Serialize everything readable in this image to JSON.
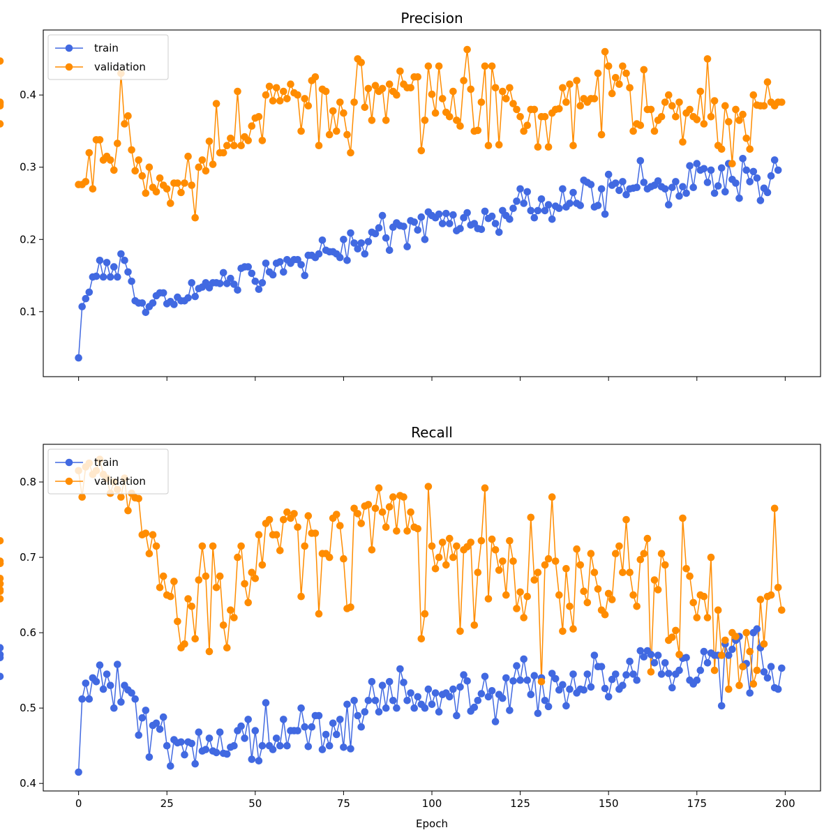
{
  "chart_data": [
    {
      "type": "line",
      "title": "Precision",
      "xlabel": "",
      "ylabel": "",
      "xlim": [
        -10,
        210
      ],
      "ylim": [
        0.01,
        0.49
      ],
      "xticks": [
        0,
        25,
        50,
        75,
        100,
        125,
        150,
        175,
        200
      ],
      "yticks": [
        0.1,
        0.2,
        0.3,
        0.4
      ],
      "ytick_labels": [
        "0.1",
        "0.2",
        "0.3",
        "0.4"
      ],
      "show_xtick_labels": false,
      "grid": false,
      "legend_position": "upper-left",
      "x": {
        "start": 0,
        "end": 199,
        "step": 1
      },
      "series": [
        {
          "name": "train",
          "color": "#4169e1",
          "marker": "circle",
          "values": [
            0.036,
            0.107,
            0.118,
            0.127,
            0.148,
            0.149,
            0.171,
            0.148,
            0.168,
            0.148,
            0.162,
            0.148,
            0.18,
            0.171,
            0.155,
            0.142,
            0.115,
            0.112,
            0.112,
            0.099,
            0.107,
            0.112,
            0.122,
            0.126,
            0.126,
            0.111,
            0.114,
            0.11,
            0.12,
            0.115,
            0.115,
            0.119,
            0.14,
            0.121,
            0.132,
            0.134,
            0.14,
            0.133,
            0.14,
            0.14,
            0.139,
            0.154,
            0.139,
            0.146,
            0.138,
            0.13,
            0.16,
            0.162,
            0.162,
            0.153,
            0.142,
            0.131,
            0.14,
            0.167,
            0.155,
            0.151,
            0.167,
            0.169,
            0.155,
            0.172,
            0.167,
            0.172,
            0.172,
            0.165,
            0.15,
            0.178,
            0.178,
            0.175,
            0.18,
            0.199,
            0.185,
            0.183,
            0.183,
            0.18,
            0.175,
            0.2,
            0.171,
            0.209,
            0.195,
            0.187,
            0.195,
            0.18,
            0.197,
            0.21,
            0.208,
            0.216,
            0.233,
            0.202,
            0.185,
            0.217,
            0.223,
            0.219,
            0.218,
            0.19,
            0.226,
            0.224,
            0.213,
            0.231,
            0.2,
            0.238,
            0.233,
            0.23,
            0.235,
            0.222,
            0.236,
            0.222,
            0.234,
            0.212,
            0.215,
            0.23,
            0.237,
            0.22,
            0.222,
            0.215,
            0.214,
            0.239,
            0.229,
            0.232,
            0.222,
            0.21,
            0.24,
            0.233,
            0.228,
            0.243,
            0.253,
            0.27,
            0.25,
            0.266,
            0.24,
            0.23,
            0.24,
            0.256,
            0.24,
            0.248,
            0.228,
            0.246,
            0.243,
            0.27,
            0.245,
            0.25,
            0.265,
            0.25,
            0.247,
            0.282,
            0.279,
            0.276,
            0.245,
            0.247,
            0.27,
            0.235,
            0.29,
            0.275,
            0.278,
            0.268,
            0.28,
            0.262,
            0.27,
            0.271,
            0.272,
            0.309,
            0.279,
            0.27,
            0.273,
            0.275,
            0.281,
            0.273,
            0.27,
            0.248,
            0.272,
            0.28,
            0.26,
            0.273,
            0.264,
            0.302,
            0.272,
            0.305,
            0.296,
            0.298,
            0.279,
            0.296,
            0.264,
            0.274,
            0.299,
            0.266,
            0.305,
            0.283,
            0.278,
            0.257,
            0.312,
            0.296,
            0.28,
            0.294,
            0.285,
            0.254,
            0.271,
            0.265,
            0.288,
            0.31,
            0.296
          ]
        },
        {
          "name": "validation",
          "color": "#ff8c00",
          "marker": "circle",
          "values": [
            0.276,
            0.276,
            0.28,
            0.32,
            0.27,
            0.338,
            0.338,
            0.31,
            0.315,
            0.31,
            0.296,
            0.333,
            0.43,
            0.36,
            0.371,
            0.324,
            0.295,
            0.31,
            0.288,
            0.264,
            0.3,
            0.272,
            0.266,
            0.285,
            0.275,
            0.27,
            0.25,
            0.278,
            0.278,
            0.265,
            0.278,
            0.315,
            0.275,
            0.23,
            0.3,
            0.31,
            0.295,
            0.336,
            0.304,
            0.388,
            0.32,
            0.32,
            0.33,
            0.34,
            0.33,
            0.405,
            0.33,
            0.342,
            0.337,
            0.357,
            0.368,
            0.37,
            0.337,
            0.4,
            0.412,
            0.392,
            0.41,
            0.392,
            0.405,
            0.395,
            0.415,
            0.403,
            0.4,
            0.35,
            0.395,
            0.385,
            0.42,
            0.425,
            0.33,
            0.408,
            0.405,
            0.345,
            0.378,
            0.35,
            0.39,
            0.375,
            0.345,
            0.32,
            0.39,
            0.45,
            0.445,
            0.383,
            0.409,
            0.365,
            0.413,
            0.405,
            0.409,
            0.365,
            0.415,
            0.405,
            0.4,
            0.433,
            0.415,
            0.41,
            0.41,
            0.425,
            0.425,
            0.323,
            0.365,
            0.44,
            0.401,
            0.375,
            0.44,
            0.395,
            0.376,
            0.37,
            0.405,
            0.365,
            0.357,
            0.42,
            0.463,
            0.408,
            0.35,
            0.351,
            0.39,
            0.44,
            0.33,
            0.44,
            0.41,
            0.331,
            0.405,
            0.395,
            0.41,
            0.388,
            0.38,
            0.37,
            0.35,
            0.358,
            0.38,
            0.38,
            0.328,
            0.37,
            0.37,
            0.328,
            0.375,
            0.38,
            0.381,
            0.41,
            0.39,
            0.415,
            0.33,
            0.42,
            0.385,
            0.395,
            0.39,
            0.395,
            0.395,
            0.43,
            0.345,
            0.46,
            0.44,
            0.402,
            0.424,
            0.415,
            0.44,
            0.43,
            0.41,
            0.35,
            0.36,
            0.358,
            0.435,
            0.38,
            0.38,
            0.35,
            0.365,
            0.37,
            0.39,
            0.4,
            0.385,
            0.37,
            0.39,
            0.335,
            0.375,
            0.38,
            0.37,
            0.366,
            0.405,
            0.36,
            0.45,
            0.37,
            0.392,
            0.33,
            0.325,
            0.385,
            0.363,
            0.305,
            0.38,
            0.365,
            0.373,
            0.34,
            0.325,
            0.4,
            0.386,
            0.385,
            0.385,
            0.418,
            0.39,
            0.385,
            0.39,
            0.39,
            0.447,
            0.36,
            0.385,
            0.39,
            0.389,
            0.387
          ]
        }
      ]
    },
    {
      "type": "line",
      "title": "Recall",
      "xlabel": "Epoch",
      "ylabel": "",
      "xlim": [
        -10,
        210
      ],
      "ylim": [
        0.39,
        0.85
      ],
      "xticks": [
        0,
        25,
        50,
        75,
        100,
        125,
        150,
        175,
        200
      ],
      "xtick_labels": [
        "0",
        "25",
        "50",
        "75",
        "100",
        "125",
        "150",
        "175",
        "200"
      ],
      "yticks": [
        0.4,
        0.5,
        0.6,
        0.7,
        0.8
      ],
      "ytick_labels": [
        "0.4",
        "0.5",
        "0.6",
        "0.7",
        "0.8"
      ],
      "show_xtick_labels": true,
      "grid": false,
      "legend_position": "upper-left",
      "x": {
        "start": 0,
        "end": 199,
        "step": 1
      },
      "series": [
        {
          "name": "train",
          "color": "#4169e1",
          "marker": "circle",
          "values": [
            0.415,
            0.512,
            0.533,
            0.512,
            0.54,
            0.535,
            0.557,
            0.525,
            0.545,
            0.53,
            0.5,
            0.558,
            0.508,
            0.53,
            0.524,
            0.52,
            0.512,
            0.464,
            0.487,
            0.497,
            0.435,
            0.477,
            0.48,
            0.472,
            0.488,
            0.45,
            0.423,
            0.458,
            0.454,
            0.455,
            0.438,
            0.455,
            0.453,
            0.426,
            0.468,
            0.443,
            0.445,
            0.46,
            0.443,
            0.441,
            0.468,
            0.44,
            0.439,
            0.448,
            0.45,
            0.47,
            0.476,
            0.46,
            0.485,
            0.432,
            0.47,
            0.43,
            0.45,
            0.507,
            0.45,
            0.445,
            0.46,
            0.45,
            0.485,
            0.45,
            0.47,
            0.47,
            0.47,
            0.5,
            0.475,
            0.449,
            0.475,
            0.49,
            0.49,
            0.445,
            0.465,
            0.45,
            0.48,
            0.465,
            0.485,
            0.448,
            0.505,
            0.446,
            0.51,
            0.49,
            0.475,
            0.495,
            0.51,
            0.535,
            0.51,
            0.495,
            0.53,
            0.5,
            0.535,
            0.51,
            0.5,
            0.552,
            0.534,
            0.51,
            0.52,
            0.5,
            0.515,
            0.505,
            0.5,
            0.525,
            0.505,
            0.52,
            0.495,
            0.518,
            0.52,
            0.515,
            0.525,
            0.49,
            0.528,
            0.544,
            0.536,
            0.496,
            0.501,
            0.51,
            0.519,
            0.542,
            0.515,
            0.523,
            0.482,
            0.518,
            0.513,
            0.54,
            0.497,
            0.536,
            0.556,
            0.537,
            0.565,
            0.537,
            0.518,
            0.543,
            0.493,
            0.54,
            0.51,
            0.502,
            0.546,
            0.539,
            0.524,
            0.531,
            0.503,
            0.525,
            0.545,
            0.52,
            0.525,
            0.524,
            0.545,
            0.528,
            0.57,
            0.555,
            0.555,
            0.526,
            0.515,
            0.538,
            0.545,
            0.525,
            0.53,
            0.544,
            0.562,
            0.545,
            0.537,
            0.576,
            0.568,
            0.576,
            0.571,
            0.56,
            0.57,
            0.545,
            0.56,
            0.546,
            0.527,
            0.545,
            0.55,
            0.566,
            0.567,
            0.537,
            0.532,
            0.537,
            0.55,
            0.575,
            0.56,
            0.573,
            0.57,
            0.57,
            0.503,
            0.585,
            0.57,
            0.578,
            0.59,
            0.595,
            0.555,
            0.559,
            0.52,
            0.6,
            0.605,
            0.58,
            0.548,
            0.54,
            0.555,
            0.527,
            0.525,
            0.553,
            0.542,
            0.567,
            0.58,
            0.571
          ]
        },
        {
          "name": "validation",
          "color": "#ff8c00",
          "marker": "circle",
          "values": [
            0.815,
            0.78,
            0.82,
            0.825,
            0.81,
            0.815,
            0.83,
            0.81,
            0.805,
            0.785,
            0.8,
            0.79,
            0.78,
            0.805,
            0.762,
            0.785,
            0.779,
            0.778,
            0.73,
            0.732,
            0.705,
            0.73,
            0.715,
            0.66,
            0.675,
            0.65,
            0.648,
            0.668,
            0.615,
            0.58,
            0.585,
            0.645,
            0.635,
            0.592,
            0.67,
            0.715,
            0.675,
            0.575,
            0.715,
            0.66,
            0.675,
            0.61,
            0.58,
            0.63,
            0.62,
            0.7,
            0.715,
            0.665,
            0.64,
            0.68,
            0.672,
            0.73,
            0.69,
            0.745,
            0.75,
            0.73,
            0.73,
            0.709,
            0.75,
            0.76,
            0.752,
            0.758,
            0.74,
            0.648,
            0.715,
            0.755,
            0.732,
            0.732,
            0.625,
            0.705,
            0.705,
            0.7,
            0.752,
            0.757,
            0.742,
            0.698,
            0.632,
            0.634,
            0.765,
            0.758,
            0.745,
            0.768,
            0.77,
            0.71,
            0.765,
            0.792,
            0.76,
            0.74,
            0.767,
            0.78,
            0.735,
            0.782,
            0.78,
            0.735,
            0.76,
            0.74,
            0.738,
            0.592,
            0.625,
            0.794,
            0.715,
            0.685,
            0.7,
            0.72,
            0.69,
            0.725,
            0.7,
            0.715,
            0.602,
            0.71,
            0.714,
            0.72,
            0.61,
            0.68,
            0.722,
            0.792,
            0.645,
            0.724,
            0.71,
            0.683,
            0.695,
            0.65,
            0.722,
            0.695,
            0.632,
            0.654,
            0.62,
            0.648,
            0.753,
            0.67,
            0.68,
            0.535,
            0.69,
            0.698,
            0.78,
            0.695,
            0.65,
            0.602,
            0.685,
            0.635,
            0.605,
            0.711,
            0.69,
            0.655,
            0.64,
            0.705,
            0.68,
            0.658,
            0.63,
            0.624,
            0.652,
            0.644,
            0.705,
            0.715,
            0.68,
            0.75,
            0.68,
            0.65,
            0.635,
            0.697,
            0.705,
            0.725,
            0.548,
            0.67,
            0.657,
            0.705,
            0.69,
            0.59,
            0.594,
            0.603,
            0.571,
            0.752,
            0.685,
            0.675,
            0.64,
            0.62,
            0.65,
            0.648,
            0.62,
            0.7,
            0.55,
            0.63,
            0.57,
            0.59,
            0.525,
            0.6,
            0.595,
            0.53,
            0.555,
            0.6,
            0.575,
            0.532,
            0.55,
            0.644,
            0.585,
            0.648,
            0.65,
            0.765,
            0.66,
            0.63,
            0.695,
            0.655,
            0.665,
            0.722,
            0.645,
            0.692,
            0.672,
            0.692,
            0.657,
            0.665
          ]
        }
      ]
    }
  ]
}
